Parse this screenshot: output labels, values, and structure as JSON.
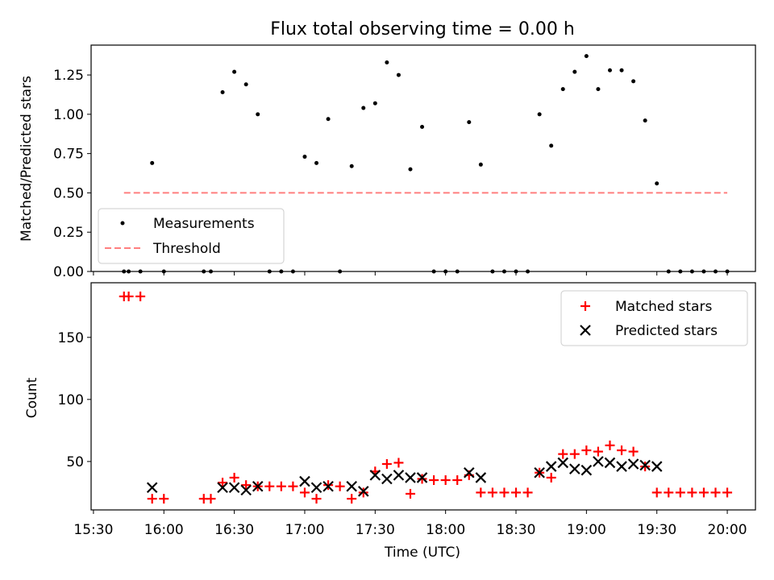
{
  "chart_data": [
    {
      "type": "scatter",
      "title": "Flux total observing time = 0.00 h",
      "ylabel": "Matched/Predicted stars",
      "xlabel": "",
      "ylim": [
        0,
        1.44
      ],
      "yticks": [
        "0.00",
        "0.25",
        "0.50",
        "0.75",
        "1.00",
        "1.25"
      ],
      "yticks_values": [
        0,
        0.25,
        0.5,
        0.75,
        1.0,
        1.25
      ],
      "legend_position": "lower-left",
      "grid": false,
      "series": [
        {
          "name": "Measurements",
          "kind": "points",
          "color": "#000000",
          "x": [
            "15:43",
            "15:45",
            "15:50",
            "15:55",
            "16:00",
            "16:17",
            "16:20",
            "16:25",
            "16:30",
            "16:35",
            "16:40",
            "16:45",
            "16:50",
            "16:55",
            "17:00",
            "17:05",
            "17:10",
            "17:15",
            "17:20",
            "17:25",
            "17:30",
            "17:35",
            "17:40",
            "17:45",
            "17:50",
            "17:55",
            "18:00",
            "18:05",
            "18:10",
            "18:15",
            "18:20",
            "18:25",
            "18:30",
            "18:35",
            "18:40",
            "18:45",
            "18:50",
            "18:55",
            "19:00",
            "19:05",
            "19:10",
            "19:15",
            "19:20",
            "19:25",
            "19:30",
            "19:35",
            "19:40",
            "19:45",
            "19:50",
            "19:55",
            "20:00"
          ],
          "y": [
            0,
            0,
            0,
            0.69,
            0,
            0,
            0,
            1.14,
            1.27,
            1.19,
            1.0,
            0,
            0,
            0,
            0.73,
            0.69,
            0.97,
            0,
            0.67,
            1.04,
            1.07,
            1.33,
            1.25,
            0.65,
            0.92,
            0,
            0,
            0,
            0.95,
            0.68,
            0,
            0,
            0,
            0,
            1.0,
            0.8,
            1.16,
            1.27,
            1.37,
            1.16,
            1.28,
            1.28,
            1.21,
            0.96,
            0.56,
            0,
            0,
            0,
            0,
            0,
            0
          ]
        },
        {
          "name": "Threshold",
          "kind": "dashed-line",
          "color": "#ff7f7f",
          "x": [
            "15:43",
            "20:00"
          ],
          "y": [
            0.5,
            0.5
          ]
        }
      ]
    },
    {
      "type": "scatter",
      "title": "",
      "ylabel": "Count",
      "xlabel": "Time (UTC)",
      "xlim": [
        "15:29",
        "20:12"
      ],
      "ylim": [
        11,
        194
      ],
      "yticks": [
        "50",
        "100",
        "150"
      ],
      "yticks_values": [
        50,
        100,
        150
      ],
      "xticks": [
        "15:30",
        "16:00",
        "16:30",
        "17:00",
        "17:30",
        "18:00",
        "18:30",
        "19:00",
        "19:30",
        "20:00"
      ],
      "legend_position": "upper-right",
      "grid": false,
      "series": [
        {
          "name": "Matched stars",
          "kind": "plus",
          "color": "#ff0000",
          "x": [
            "15:43",
            "15:45",
            "15:50",
            "15:55",
            "16:00",
            "16:17",
            "16:20",
            "16:25",
            "16:30",
            "16:35",
            "16:40",
            "16:45",
            "16:50",
            "16:55",
            "17:00",
            "17:05",
            "17:10",
            "17:15",
            "17:20",
            "17:25",
            "17:30",
            "17:35",
            "17:40",
            "17:45",
            "17:50",
            "17:55",
            "18:00",
            "18:05",
            "18:10",
            "18:15",
            "18:20",
            "18:25",
            "18:30",
            "18:35",
            "18:40",
            "18:45",
            "18:50",
            "18:55",
            "19:00",
            "19:05",
            "19:10",
            "19:15",
            "19:20",
            "19:25",
            "19:30",
            "19:35",
            "19:40",
            "19:45",
            "19:50",
            "19:55",
            "20:00"
          ],
          "y": [
            183,
            183,
            183,
            20,
            20,
            20,
            20,
            33,
            37,
            31,
            30,
            30,
            30,
            30,
            25,
            20,
            31,
            30,
            20,
            25,
            42,
            48,
            49,
            24,
            36,
            35,
            35,
            35,
            39,
            25,
            25,
            25,
            25,
            25,
            41,
            37,
            56,
            56,
            59,
            58,
            63,
            59,
            58,
            46,
            25,
            25,
            25,
            25,
            25,
            25,
            25
          ]
        },
        {
          "name": "Predicted stars",
          "kind": "x",
          "color": "#000000",
          "x": [
            "15:55",
            "16:25",
            "16:30",
            "16:35",
            "16:40",
            "17:00",
            "17:05",
            "17:10",
            "17:20",
            "17:25",
            "17:30",
            "17:35",
            "17:40",
            "17:45",
            "17:50",
            "18:10",
            "18:15",
            "18:40",
            "18:45",
            "18:50",
            "18:55",
            "19:00",
            "19:05",
            "19:10",
            "19:15",
            "19:20",
            "19:25",
            "19:30"
          ],
          "y": [
            29,
            29,
            29,
            27,
            30,
            34,
            29,
            30,
            30,
            26,
            39,
            36,
            39,
            37,
            37,
            41,
            37,
            41,
            46,
            49,
            44,
            43,
            50,
            49,
            46,
            48,
            47,
            46
          ]
        }
      ]
    }
  ]
}
